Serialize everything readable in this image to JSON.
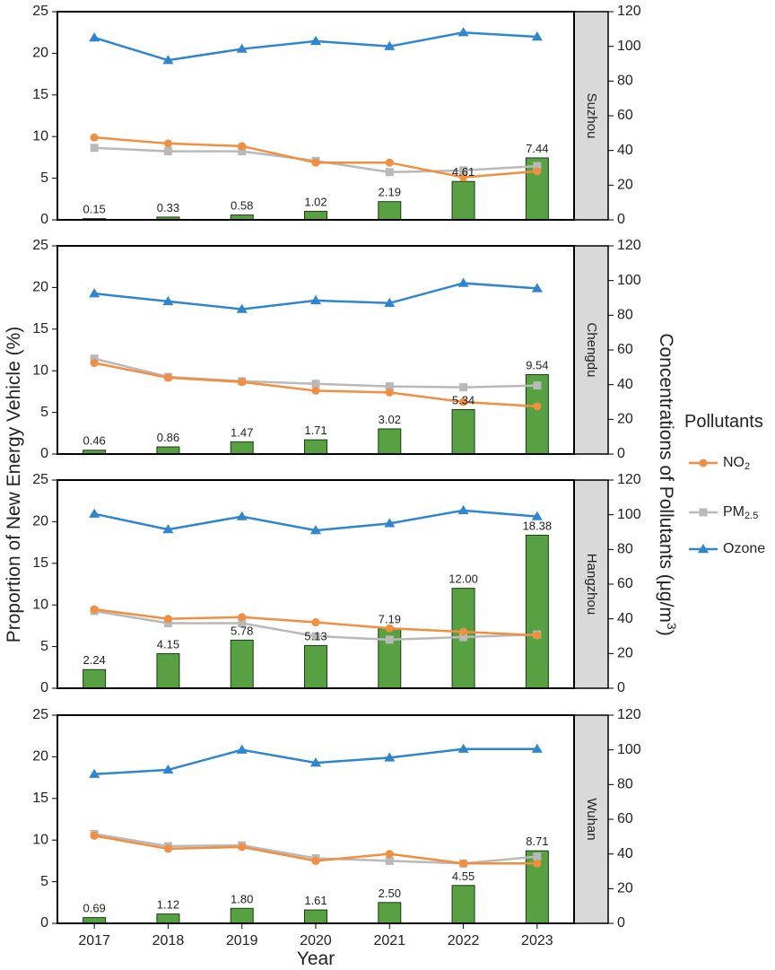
{
  "chart_data": {
    "type": "bar",
    "xlabel": "Year",
    "ylabel_left": "Proportion of New Energy Vehicle (%)",
    "ylabel_right": "Concentrations of Pollutants (μg/m³)",
    "ylim_left": [
      0,
      25
    ],
    "ylim_right": [
      0,
      120
    ],
    "yticks_left": [
      "0",
      "5",
      "10",
      "15",
      "20",
      "25"
    ],
    "yticks_right": [
      "0",
      "20",
      "40",
      "60",
      "80",
      "100",
      "120"
    ],
    "categories": [
      "2017",
      "2018",
      "2019",
      "2020",
      "2021",
      "2022",
      "2023"
    ],
    "legend": {
      "title": "Pollutants",
      "entries": [
        {
          "name": "NO",
          "sub": "2",
          "color": "#F28E3E",
          "marker": "circle"
        },
        {
          "name": "PM",
          "sub": "2.5",
          "color": "#B9B9B9",
          "marker": "square"
        },
        {
          "name": "Ozone",
          "sub": "",
          "color": "#2E86D0",
          "marker": "triangle"
        }
      ]
    },
    "colors": {
      "bar": "#58A143",
      "bar_edge": "#1a3d12",
      "strip": "#d9d9d9"
    },
    "panels": [
      {
        "city": "Suzhou",
        "nev": [
          0.15,
          0.33,
          0.58,
          1.02,
          2.19,
          4.61,
          7.44
        ],
        "nev_labels": [
          "0.15",
          "0.33",
          "0.58",
          "1.02",
          "2.19",
          "4.61",
          "7.44"
        ],
        "NO2": [
          47.5,
          44,
          42.5,
          33,
          33,
          24.5,
          28
        ],
        "PM25": [
          41.5,
          39.5,
          39.5,
          34,
          27.5,
          28.5,
          31
        ],
        "Ozone": [
          105,
          92,
          98.5,
          103,
          100,
          108,
          105.5
        ]
      },
      {
        "city": "Chengdu",
        "nev": [
          0.46,
          0.86,
          1.47,
          1.71,
          3.02,
          5.34,
          9.54
        ],
        "nev_labels": [
          "0.46",
          "0.86",
          "1.47",
          "1.71",
          "3.02",
          "5.34",
          "9.54"
        ],
        "NO2": [
          52.5,
          44,
          41.5,
          36.5,
          35.5,
          30,
          27.5
        ],
        "PM25": [
          55,
          44.5,
          42,
          40.5,
          39,
          38.5,
          39.5
        ],
        "Ozone": [
          92.5,
          88,
          83.5,
          88.5,
          87,
          98.5,
          95.5
        ]
      },
      {
        "city": "Hangzhou",
        "nev": [
          2.24,
          4.15,
          5.78,
          5.13,
          7.19,
          12.0,
          18.38
        ],
        "nev_labels": [
          "2.24",
          "4.15",
          "5.78",
          "5.13",
          "7.19",
          "12.00",
          "18.38"
        ],
        "NO2": [
          45.5,
          40,
          41,
          38,
          34.5,
          32.5,
          30.5
        ],
        "PM25": [
          44.5,
          37.5,
          37.5,
          30,
          28,
          29.5,
          31
        ],
        "Ozone": [
          100.5,
          91.5,
          99,
          91,
          95,
          102.5,
          99
        ]
      },
      {
        "city": "Wuhan",
        "nev": [
          0.69,
          1.12,
          1.8,
          1.61,
          2.5,
          4.55,
          8.71
        ],
        "nev_labels": [
          "0.69",
          "1.12",
          "1.80",
          "1.61",
          "2.50",
          "4.55",
          "8.71"
        ],
        "NO2": [
          50.5,
          43,
          44,
          36,
          40,
          34.5,
          34.5
        ],
        "PM25": [
          51.5,
          44.5,
          45,
          37.5,
          36,
          34.5,
          38.5
        ],
        "Ozone": [
          86,
          88.5,
          100,
          92.5,
          95.5,
          100.5,
          100.5
        ]
      }
    ]
  }
}
